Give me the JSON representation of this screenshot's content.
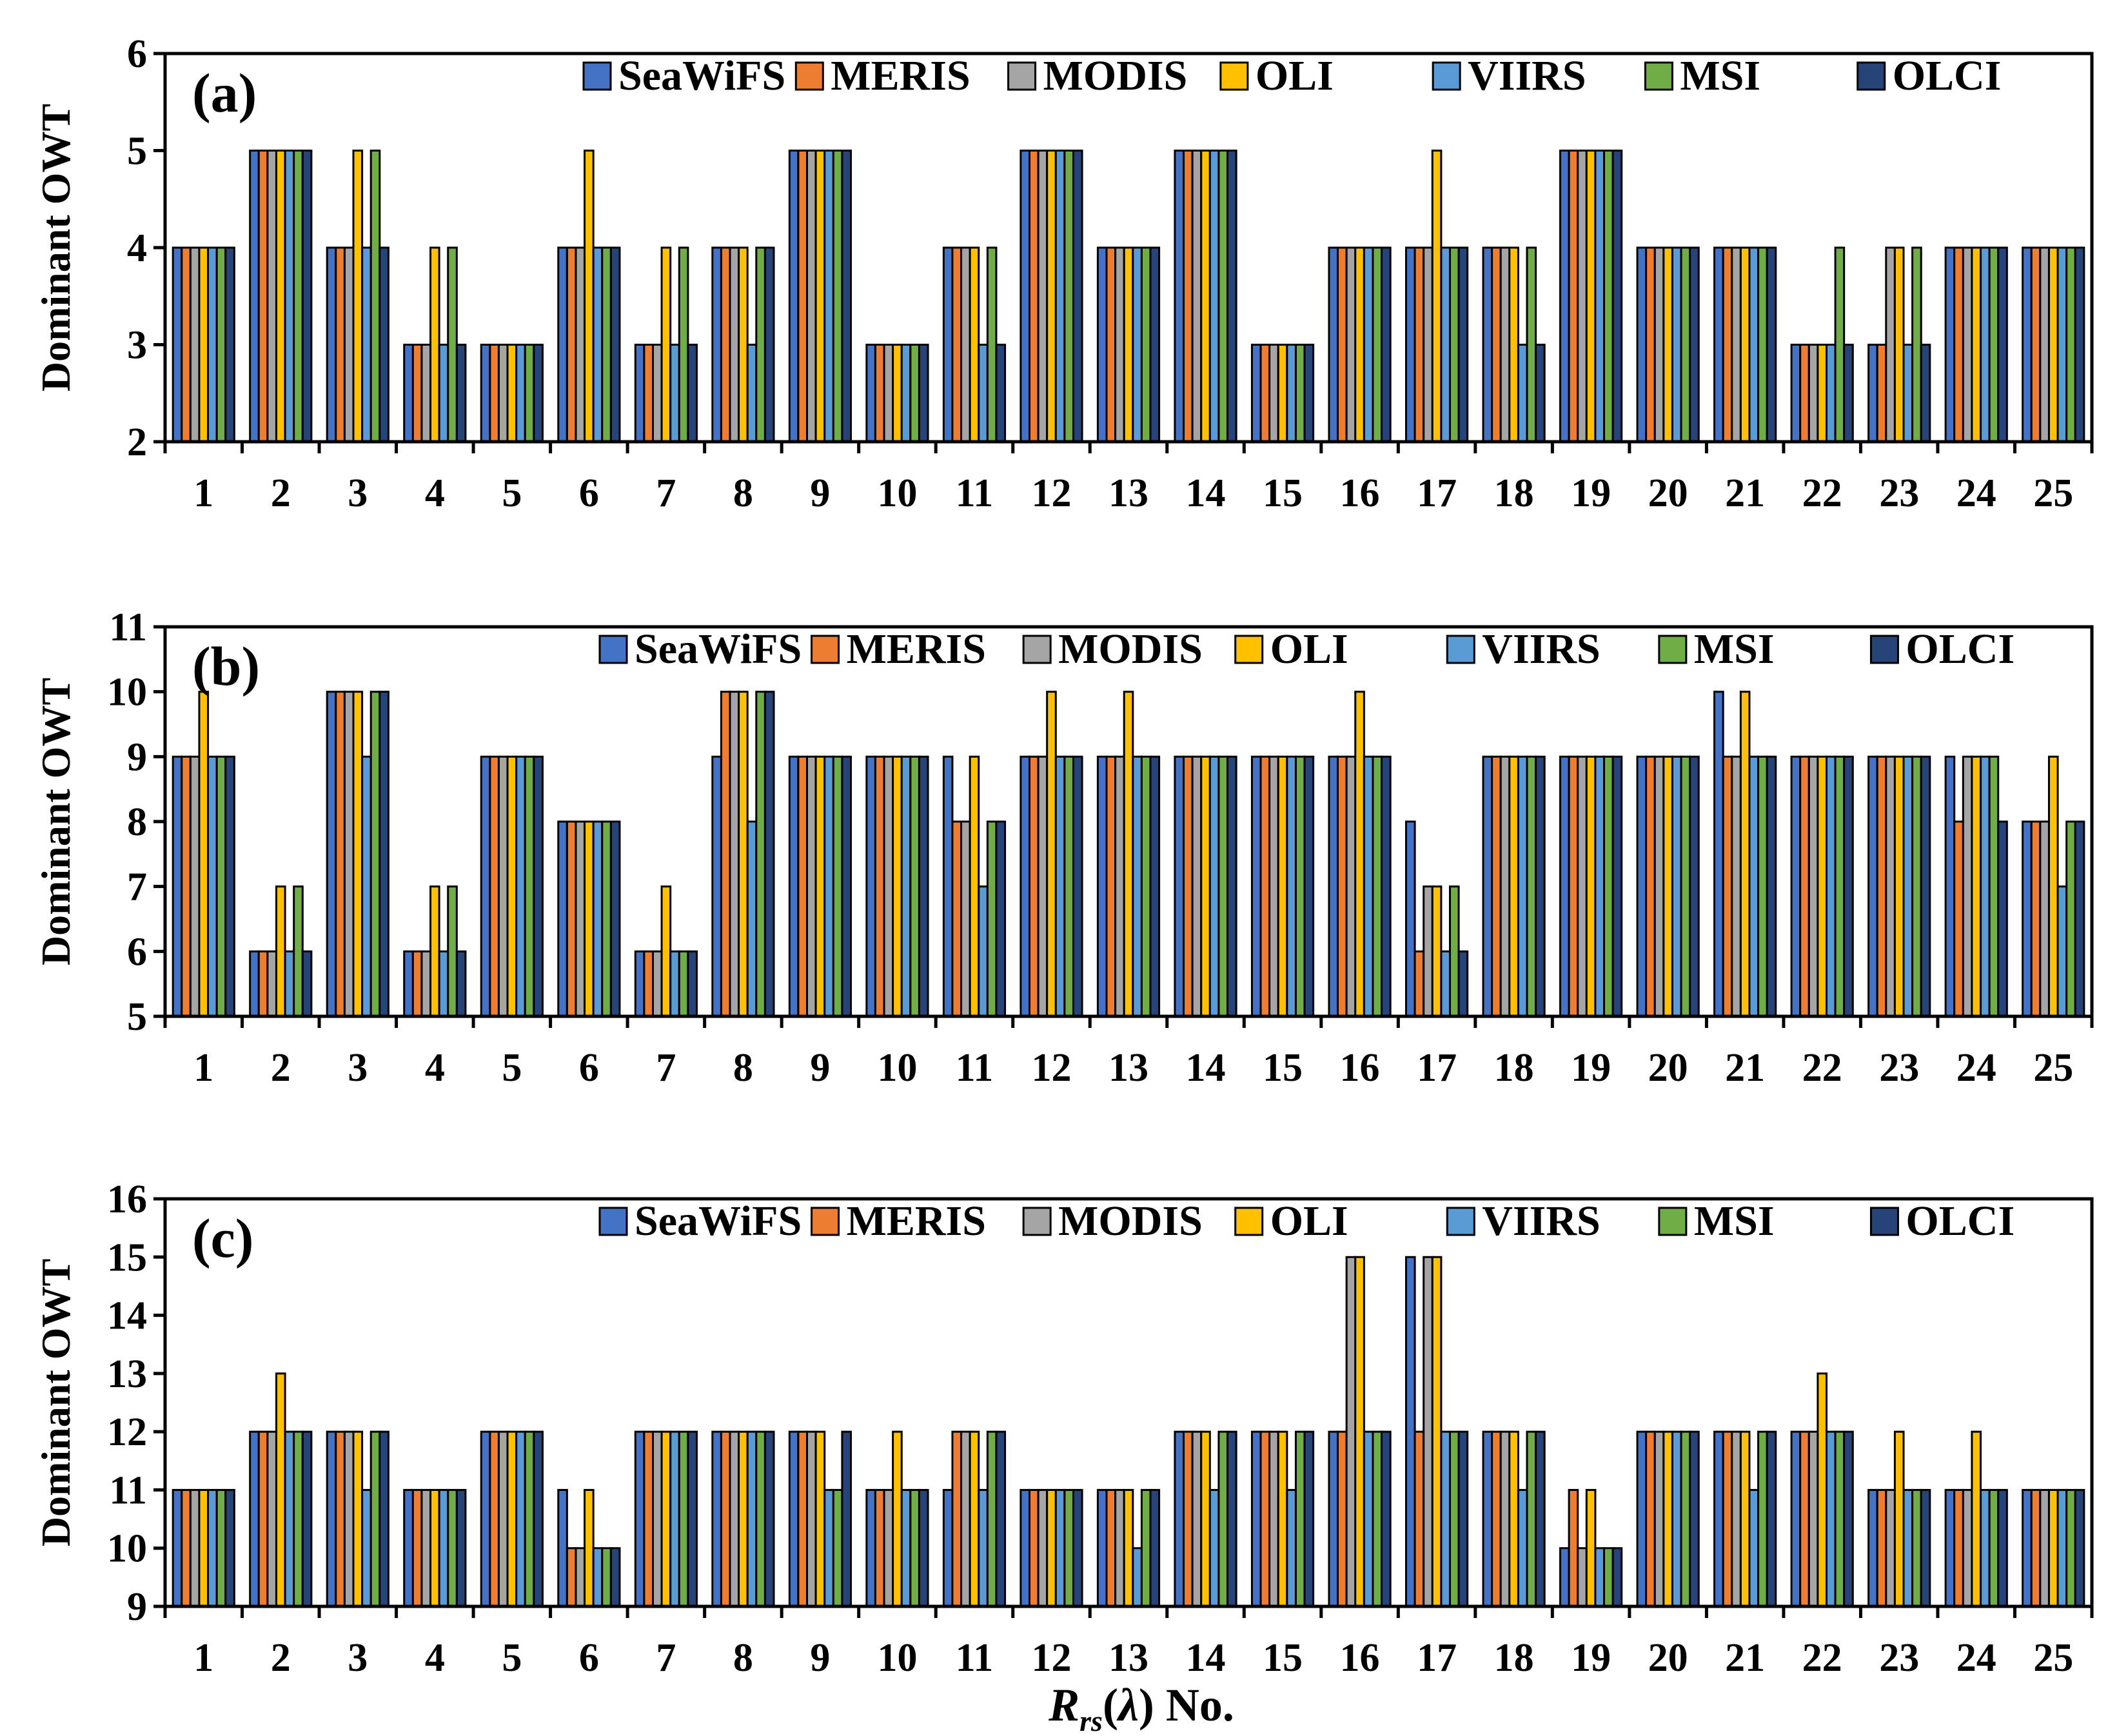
{
  "series_names": [
    "SeaWiFS",
    "MERIS",
    "MODIS",
    "OLI",
    "VIIRS",
    "MSI",
    "OLCI"
  ],
  "series_colors": [
    "#4472c4",
    "#ed7d31",
    "#a5a5a5",
    "#ffc000",
    "#5b9bd5",
    "#70ad47",
    "#264478"
  ],
  "xlabel_text": "No.",
  "chart_data": [
    {
      "type": "bar",
      "panel_label": "(a)",
      "ylabel": "Dominant OWT",
      "ylim": [
        2,
        6
      ],
      "yticks": [
        2,
        3,
        4,
        5,
        6
      ],
      "categories": [
        "1",
        "2",
        "3",
        "4",
        "5",
        "6",
        "7",
        "8",
        "9",
        "10",
        "11",
        "12",
        "13",
        "14",
        "15",
        "16",
        "17",
        "18",
        "19",
        "20",
        "21",
        "22",
        "23",
        "24",
        "25"
      ],
      "legend": "top",
      "series": [
        {
          "name": "SeaWiFS",
          "values": [
            4,
            5,
            4,
            3,
            3,
            4,
            3,
            4,
            5,
            3,
            4,
            5,
            4,
            5,
            3,
            4,
            4,
            4,
            5,
            4,
            4,
            3,
            3,
            4,
            4
          ]
        },
        {
          "name": "MERIS",
          "values": [
            4,
            5,
            4,
            3,
            3,
            4,
            3,
            4,
            5,
            3,
            4,
            5,
            4,
            5,
            3,
            4,
            4,
            4,
            5,
            4,
            4,
            3,
            3,
            4,
            4
          ]
        },
        {
          "name": "MODIS",
          "values": [
            4,
            5,
            4,
            3,
            3,
            4,
            3,
            4,
            5,
            3,
            4,
            5,
            4,
            5,
            3,
            4,
            4,
            4,
            5,
            4,
            4,
            3,
            4,
            4,
            4
          ]
        },
        {
          "name": "OLI",
          "values": [
            4,
            5,
            5,
            4,
            3,
            5,
            4,
            4,
            5,
            3,
            4,
            5,
            4,
            5,
            3,
            4,
            5,
            4,
            5,
            4,
            4,
            3,
            4,
            4,
            4
          ]
        },
        {
          "name": "VIIRS",
          "values": [
            4,
            5,
            4,
            3,
            3,
            4,
            3,
            3,
            5,
            3,
            3,
            5,
            4,
            5,
            3,
            4,
            4,
            3,
            5,
            4,
            4,
            3,
            3,
            4,
            4
          ]
        },
        {
          "name": "MSI",
          "values": [
            4,
            5,
            5,
            4,
            3,
            4,
            4,
            4,
            5,
            3,
            4,
            5,
            4,
            5,
            3,
            4,
            4,
            4,
            5,
            4,
            4,
            4,
            4,
            4,
            4
          ]
        },
        {
          "name": "OLCI",
          "values": [
            4,
            5,
            4,
            3,
            3,
            4,
            3,
            4,
            5,
            3,
            3,
            5,
            4,
            5,
            3,
            4,
            4,
            3,
            5,
            4,
            4,
            3,
            3,
            4,
            4
          ]
        }
      ]
    },
    {
      "type": "bar",
      "panel_label": "(b)",
      "ylabel": "Dominant OWT",
      "ylim": [
        5,
        11
      ],
      "yticks": [
        5,
        6,
        7,
        8,
        9,
        10,
        11
      ],
      "categories": [
        "1",
        "2",
        "3",
        "4",
        "5",
        "6",
        "7",
        "8",
        "9",
        "10",
        "11",
        "12",
        "13",
        "14",
        "15",
        "16",
        "17",
        "18",
        "19",
        "20",
        "21",
        "22",
        "23",
        "24",
        "25"
      ],
      "legend": "top",
      "series": [
        {
          "name": "SeaWiFS",
          "values": [
            9,
            6,
            10,
            6,
            9,
            8,
            6,
            9,
            9,
            9,
            9,
            9,
            9,
            9,
            9,
            9,
            8,
            9,
            9,
            9,
            10,
            9,
            9,
            9,
            8
          ]
        },
        {
          "name": "MERIS",
          "values": [
            9,
            6,
            10,
            6,
            9,
            8,
            6,
            10,
            9,
            9,
            8,
            9,
            9,
            9,
            9,
            9,
            6,
            9,
            9,
            9,
            9,
            9,
            9,
            8,
            8
          ]
        },
        {
          "name": "MODIS",
          "values": [
            9,
            6,
            10,
            6,
            9,
            8,
            6,
            10,
            9,
            9,
            8,
            9,
            9,
            9,
            9,
            9,
            7,
            9,
            9,
            9,
            9,
            9,
            9,
            9,
            8
          ]
        },
        {
          "name": "OLI",
          "values": [
            10,
            7,
            10,
            7,
            9,
            8,
            7,
            10,
            9,
            9,
            9,
            10,
            10,
            9,
            9,
            10,
            7,
            9,
            9,
            9,
            10,
            9,
            9,
            9,
            9
          ]
        },
        {
          "name": "VIIRS",
          "values": [
            9,
            6,
            9,
            6,
            9,
            8,
            6,
            8,
            9,
            9,
            7,
            9,
            9,
            9,
            9,
            9,
            6,
            9,
            9,
            9,
            9,
            9,
            9,
            9,
            7
          ]
        },
        {
          "name": "MSI",
          "values": [
            9,
            7,
            10,
            7,
            9,
            8,
            6,
            10,
            9,
            9,
            8,
            9,
            9,
            9,
            9,
            9,
            7,
            9,
            9,
            9,
            9,
            9,
            9,
            9,
            8
          ]
        },
        {
          "name": "OLCI",
          "values": [
            9,
            6,
            10,
            6,
            9,
            8,
            6,
            10,
            9,
            9,
            8,
            9,
            9,
            9,
            9,
            9,
            6,
            9,
            9,
            9,
            9,
            9,
            9,
            8,
            8
          ]
        }
      ]
    },
    {
      "type": "bar",
      "panel_label": "(c)",
      "ylabel": "Dominant OWT",
      "ylim": [
        9,
        16
      ],
      "yticks": [
        9,
        10,
        11,
        12,
        13,
        14,
        15,
        16
      ],
      "categories": [
        "1",
        "2",
        "3",
        "4",
        "5",
        "6",
        "7",
        "8",
        "9",
        "10",
        "11",
        "12",
        "13",
        "14",
        "15",
        "16",
        "17",
        "18",
        "19",
        "20",
        "21",
        "22",
        "23",
        "24",
        "25"
      ],
      "legend": "top",
      "series": [
        {
          "name": "SeaWiFS",
          "values": [
            11,
            12,
            12,
            11,
            12,
            11,
            12,
            12,
            12,
            11,
            11,
            11,
            11,
            12,
            12,
            12,
            15,
            12,
            10,
            12,
            12,
            12,
            11,
            11,
            11
          ]
        },
        {
          "name": "MERIS",
          "values": [
            11,
            12,
            12,
            11,
            12,
            10,
            12,
            12,
            12,
            11,
            12,
            11,
            11,
            12,
            12,
            12,
            12,
            12,
            11,
            12,
            12,
            12,
            11,
            11,
            11
          ]
        },
        {
          "name": "MODIS",
          "values": [
            11,
            12,
            12,
            11,
            12,
            10,
            12,
            12,
            12,
            11,
            12,
            11,
            11,
            12,
            12,
            15,
            15,
            12,
            10,
            12,
            12,
            12,
            11,
            11,
            11
          ]
        },
        {
          "name": "OLI",
          "values": [
            11,
            13,
            12,
            11,
            12,
            11,
            12,
            12,
            12,
            12,
            12,
            11,
            11,
            12,
            12,
            15,
            15,
            12,
            11,
            12,
            12,
            13,
            12,
            12,
            11
          ]
        },
        {
          "name": "VIIRS",
          "values": [
            11,
            12,
            11,
            11,
            12,
            10,
            12,
            12,
            11,
            11,
            11,
            11,
            10,
            11,
            11,
            12,
            12,
            11,
            10,
            12,
            11,
            12,
            11,
            11,
            11
          ]
        },
        {
          "name": "MSI",
          "values": [
            11,
            12,
            12,
            11,
            12,
            10,
            12,
            12,
            11,
            11,
            12,
            11,
            11,
            12,
            12,
            12,
            12,
            12,
            10,
            12,
            12,
            12,
            11,
            11,
            11
          ]
        },
        {
          "name": "OLCI",
          "values": [
            11,
            12,
            12,
            11,
            12,
            10,
            12,
            12,
            12,
            11,
            12,
            11,
            11,
            12,
            12,
            12,
            12,
            12,
            10,
            12,
            12,
            12,
            11,
            11,
            11
          ]
        }
      ]
    }
  ]
}
